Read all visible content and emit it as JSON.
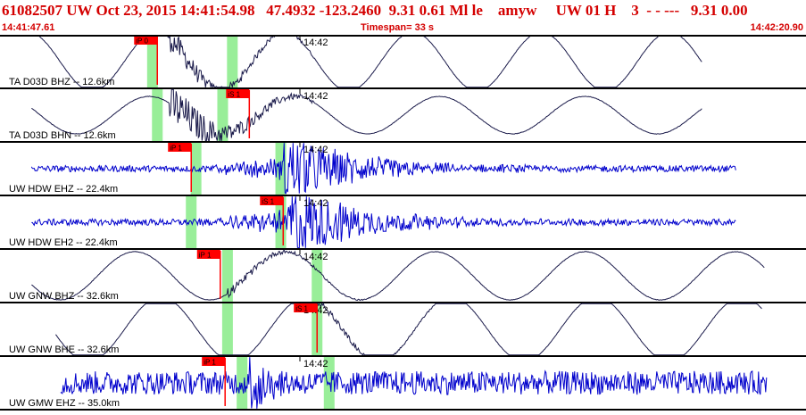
{
  "header": {
    "title": "61082507 UW Oct 23, 2015 14:41:54.98   47.4932 -123.2460  9.31 0.61 Ml le    amyw     UW 01 H    3  - - ---   9.31 0.00",
    "start_time": "14:41:47.61",
    "timespan": "Timespan=  33 s",
    "end_time": "14:42:20.90"
  },
  "colors": {
    "header_text": "#d40000",
    "trace_low_rate": "#1a1a4a",
    "trace_high_rate": "#0000cc",
    "pick_marker": "#ff0000",
    "pick_window": "#99ee99",
    "channel_divider": "#000000"
  },
  "tick_label": "14:42",
  "channels": [
    {
      "label": "TA D03D BHZ -- 12.6km",
      "kind": "low",
      "picks": [
        {
          "label": "iP 0",
          "time": 6.5
        }
      ],
      "green_windows": [
        6.3,
        9.6
      ],
      "trace": {
        "start": 1.3,
        "end": 29.0,
        "period": 5.3,
        "amp": 0.55,
        "phase": 0.2,
        "event": 7.0,
        "coda": 0.25
      }
    },
    {
      "label": "TA D03D BHN -- 12.6km",
      "kind": "low",
      "picks": [
        {
          "label": "iS 1",
          "time": 10.3
        }
      ],
      "green_windows": [
        6.5,
        9.2
      ],
      "trace": {
        "start": 1.3,
        "end": 29.0,
        "period": 6.0,
        "amp": 0.35,
        "phase": 1.4,
        "event": 7.0,
        "coda": 0.45
      }
    },
    {
      "label": "UW HDW EHZ -- 22.4km",
      "kind": "high",
      "picks": [
        {
          "label": "iP 1",
          "time": 7.9
        }
      ],
      "green_windows": [
        8.1,
        11.6
      ],
      "trace": {
        "start": 1.3,
        "end": 30.4,
        "noise": 0.06,
        "event": 8.1,
        "peak": 11.7,
        "amp": 0.75,
        "decay": 2.8
      }
    },
    {
      "label": "UW HDW EH2 -- 22.4km",
      "kind": "high",
      "picks": [
        {
          "label": "iS 1",
          "time": 11.7
        }
      ],
      "green_windows": [
        7.9,
        11.6
      ],
      "trace": {
        "start": 1.3,
        "end": 30.4,
        "noise": 0.06,
        "event": 8.3,
        "peak": 11.9,
        "amp": 0.85,
        "decay": 2.6
      }
    },
    {
      "label": "UW GNW BHZ -- 32.6km",
      "kind": "low",
      "picks": [
        {
          "label": "iP 1",
          "time": 9.1
        }
      ],
      "green_windows": [
        9.4,
        13.1
      ],
      "trace": {
        "start": 1.3,
        "end": 31.6,
        "period": 6.2,
        "amp": 0.45,
        "phase": 2.2,
        "event": 9.4,
        "coda": 0.1
      }
    },
    {
      "label": "UW GNW BHE -- 32.6km",
      "kind": "low",
      "picks": [
        {
          "label": "iS 1",
          "time": 13.1
        }
      ],
      "green_windows": [
        9.4,
        13.1
      ],
      "trace": {
        "start": 2.3,
        "end": 31.5,
        "period": 6.0,
        "amp": 0.6,
        "phase": 0.9,
        "event": 13.0,
        "coda": 0.08
      }
    },
    {
      "label": "UW GMW EHZ -- 35.0km",
      "kind": "high",
      "picks": [
        {
          "label": "iP 1",
          "time": 9.3
        }
      ],
      "green_windows": [
        10.0,
        13.6
      ],
      "trace": {
        "start": 2.5,
        "end": 31.7,
        "noise": 0.22,
        "event": 10.0,
        "peak": 10.3,
        "amp": 0.85,
        "decay": 0.6
      }
    }
  ]
}
